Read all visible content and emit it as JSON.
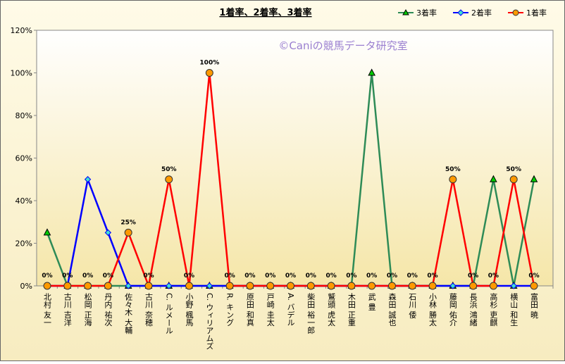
{
  "chart_data": {
    "type": "line",
    "title": "1着率、2着率、3着率",
    "watermark": "©Caniの競馬データ研究室",
    "categories": [
      "北村 友一",
      "古川 吉洋",
      "松岡 正海",
      "丹内 祐次",
      "佐々木 大輔",
      "古川 奈穂",
      "C. ルメール",
      "小野 楓馬",
      "C. ウィリアムズ",
      "R. キング",
      "原田 和真",
      "戸崎 圭太",
      "A. バデル",
      "柴田 裕一郎",
      "鷲頭 虎太",
      "木田 正重",
      "武 豊",
      "森田 誠也",
      "石川 倭",
      "小林 勝太",
      "藤岡 佑介",
      "長浜 鴻緒",
      "高杉 吏麒",
      "横山 和生",
      "富田 暁"
    ],
    "series": [
      {
        "name": "3着率",
        "color": "#2e8b57",
        "marker": "triangle",
        "values": [
          25,
          0,
          0,
          0,
          0,
          0,
          0,
          0,
          0,
          0,
          0,
          0,
          0,
          0,
          0,
          0,
          100,
          0,
          0,
          0,
          0,
          0,
          50,
          0,
          50
        ]
      },
      {
        "name": "2着率",
        "color": "#0000ff",
        "marker": "diamond",
        "values": [
          0,
          0,
          50,
          25,
          0,
          0,
          0,
          0,
          0,
          0,
          0,
          0,
          0,
          0,
          0,
          0,
          0,
          0,
          0,
          0,
          0,
          0,
          0,
          0,
          0
        ]
      },
      {
        "name": "1着率",
        "color": "#ff0000",
        "marker": "circle",
        "values": [
          0,
          0,
          0,
          0,
          25,
          0,
          50,
          0,
          100,
          0,
          0,
          0,
          0,
          0,
          0,
          0,
          0,
          0,
          0,
          0,
          50,
          0,
          0,
          50,
          0
        ],
        "value_labels": [
          "0%",
          "0%",
          "0%",
          "0%",
          "25%",
          "0%",
          "50%",
          "0%",
          "100%",
          "0%",
          "0%",
          "0%",
          "0%",
          "0%",
          "0%",
          "0%",
          "0%",
          "0%",
          "0%",
          "0%",
          "50%",
          "0%",
          "0%",
          "50%",
          "0%"
        ]
      }
    ],
    "ylim": [
      0,
      120
    ],
    "yticks": [
      {
        "value": 0,
        "label": "0%"
      },
      {
        "value": 20,
        "label": "20%"
      },
      {
        "value": 40,
        "label": "40%"
      },
      {
        "value": 60,
        "label": "60%"
      },
      {
        "value": 80,
        "label": "80%"
      },
      {
        "value": 100,
        "label": "100%"
      },
      {
        "value": 120,
        "label": "120%"
      }
    ],
    "grid": false,
    "legend": "top-right"
  }
}
